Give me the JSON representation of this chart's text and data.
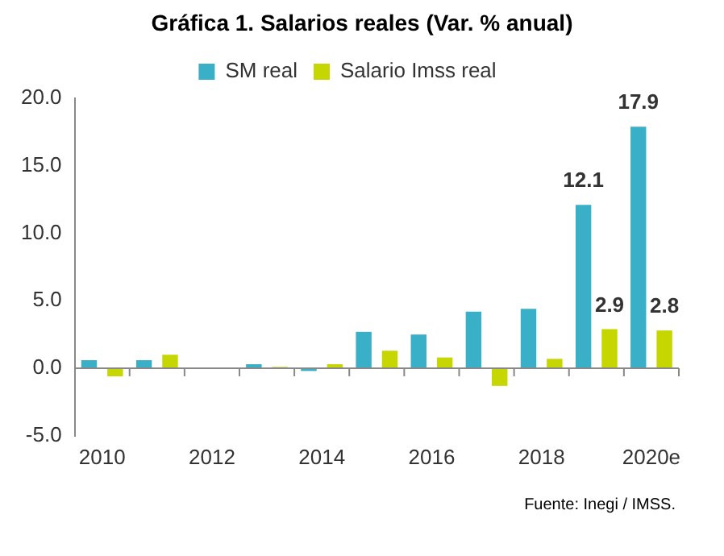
{
  "chart_data": {
    "type": "bar",
    "title": "Gráfica 1. Salarios reales (Var. % anual)",
    "categories": [
      "2010",
      null,
      "2012",
      null,
      "2014",
      null,
      "2016",
      null,
      "2018",
      null,
      "2020e"
    ],
    "series": [
      {
        "name": "SM real",
        "color": "#3aafc8",
        "values": [
          0.6,
          0.6,
          0,
          0.3,
          -0.2,
          2.7,
          2.5,
          4.2,
          4.4,
          12.1,
          17.9
        ],
        "value_labels": [
          null,
          null,
          null,
          null,
          null,
          null,
          null,
          null,
          null,
          "12.1",
          "17.9"
        ]
      },
      {
        "name": "Salario Imss real",
        "color": "#c5d600",
        "values": [
          -0.6,
          1.0,
          0,
          0.1,
          0.3,
          1.3,
          0.8,
          -1.3,
          0.7,
          2.9,
          2.8
        ],
        "value_labels": [
          null,
          null,
          null,
          null,
          null,
          null,
          null,
          null,
          null,
          "2.9",
          "2.8"
        ]
      }
    ],
    "ylim": [
      -5,
      20
    ],
    "yticks": [
      {
        "value": -5,
        "label": "-5.0"
      },
      {
        "value": 0,
        "label": "0.0"
      },
      {
        "value": 5,
        "label": "5.0"
      },
      {
        "value": 10,
        "label": "10.0"
      },
      {
        "value": 15,
        "label": "15.0"
      },
      {
        "value": 20,
        "label": "20.0"
      }
    ],
    "legend": "top",
    "annotations": [
      "Fuente: Inegi / IMSS."
    ]
  }
}
